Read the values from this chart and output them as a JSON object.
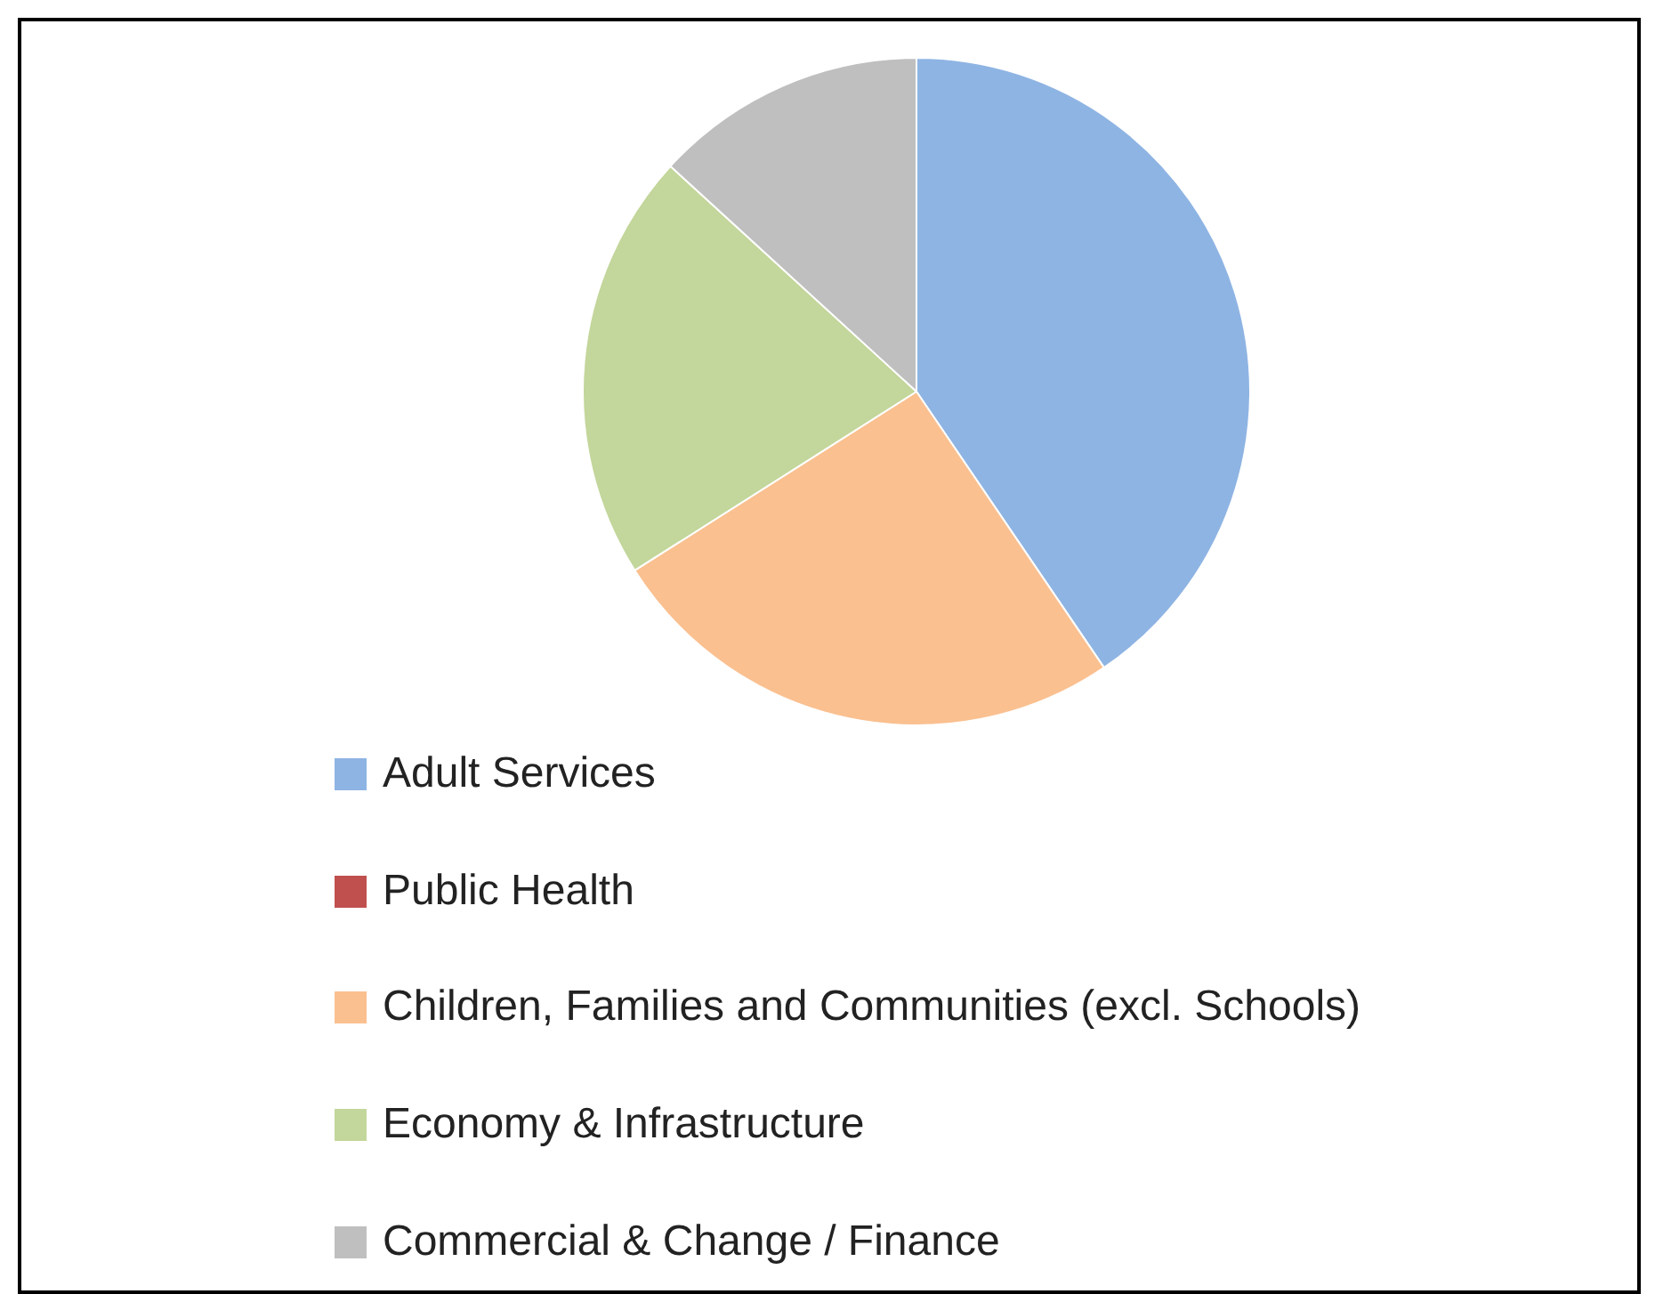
{
  "chart_data": {
    "type": "pie",
    "categories": [
      "Adult Services",
      "Public Health",
      "Children, Families and Communities (excl. Schools)",
      "Economy & Infrastructure",
      "Commercial & Change / Finance"
    ],
    "values": [
      40.5,
      0,
      25.5,
      20.8,
      13.2
    ],
    "colors": [
      "#8eb4e3",
      "#c0504d",
      "#fac090",
      "#c3d69b",
      "#bfbfbf"
    ],
    "legend": "bottom"
  }
}
